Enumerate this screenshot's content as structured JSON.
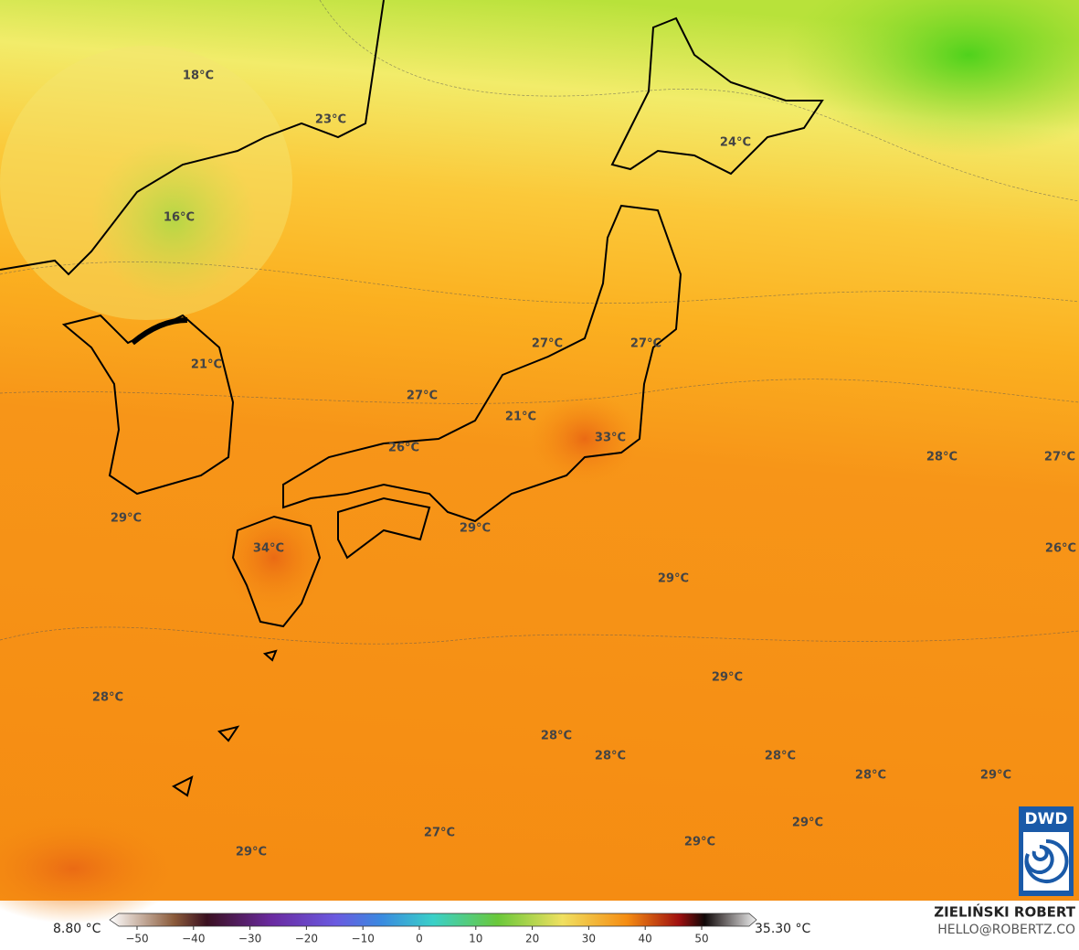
{
  "map": {
    "labels": [
      "18°C",
      "23°C",
      "16°C",
      "24°C",
      "27°C",
      "27°C",
      "21°C",
      "27°C",
      "21°C",
      "33°C",
      "26°C",
      "28°C",
      "27°C",
      "29°C",
      "29°C",
      "34°C",
      "26°C",
      "29°C",
      "29°C",
      "28°C",
      "28°C",
      "28°C",
      "28°C",
      "28°C",
      "29°C",
      "29°C",
      "27°C",
      "29°C",
      "29°C"
    ],
    "logo": "DWD"
  },
  "colorbar": {
    "min_label": "8.80 °C",
    "max_label": "35.30 °C",
    "ticks": [
      {
        "value": -50,
        "label": "−50"
      },
      {
        "value": -40,
        "label": "−40"
      },
      {
        "value": -30,
        "label": "−30"
      },
      {
        "value": -20,
        "label": "−20"
      },
      {
        "value": -10,
        "label": "−10"
      },
      0,
      10,
      20,
      30,
      40,
      50
    ]
  },
  "credit": {
    "name": "ZIELIŃSKI ROBERT",
    "contact": "HELLO@ROBERTZ.CO"
  }
}
